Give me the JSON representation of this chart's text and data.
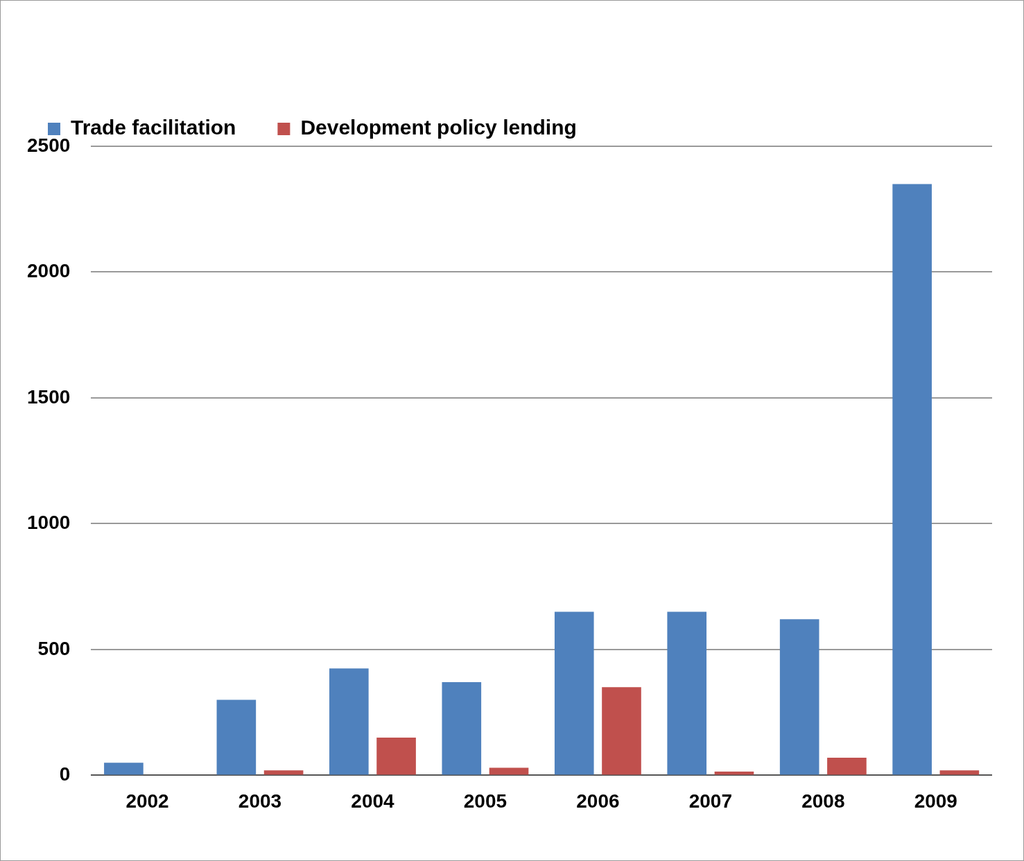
{
  "chart_data": {
    "type": "bar",
    "categories": [
      "2002",
      "2003",
      "2004",
      "2005",
      "2006",
      "2007",
      "2008",
      "2009"
    ],
    "series": [
      {
        "name": "Trade facilitation",
        "color": "#4f81bd",
        "values": [
          50,
          300,
          425,
          370,
          650,
          650,
          620,
          2350
        ]
      },
      {
        "name": "Development policy lending",
        "color": "#c0504d",
        "values": [
          0,
          20,
          150,
          30,
          350,
          15,
          70,
          20
        ]
      }
    ],
    "ylim": [
      0,
      2500
    ],
    "yticks": [
      0,
      500,
      1000,
      1500,
      2000,
      2500
    ],
    "grid": "y",
    "legend": "top left"
  }
}
